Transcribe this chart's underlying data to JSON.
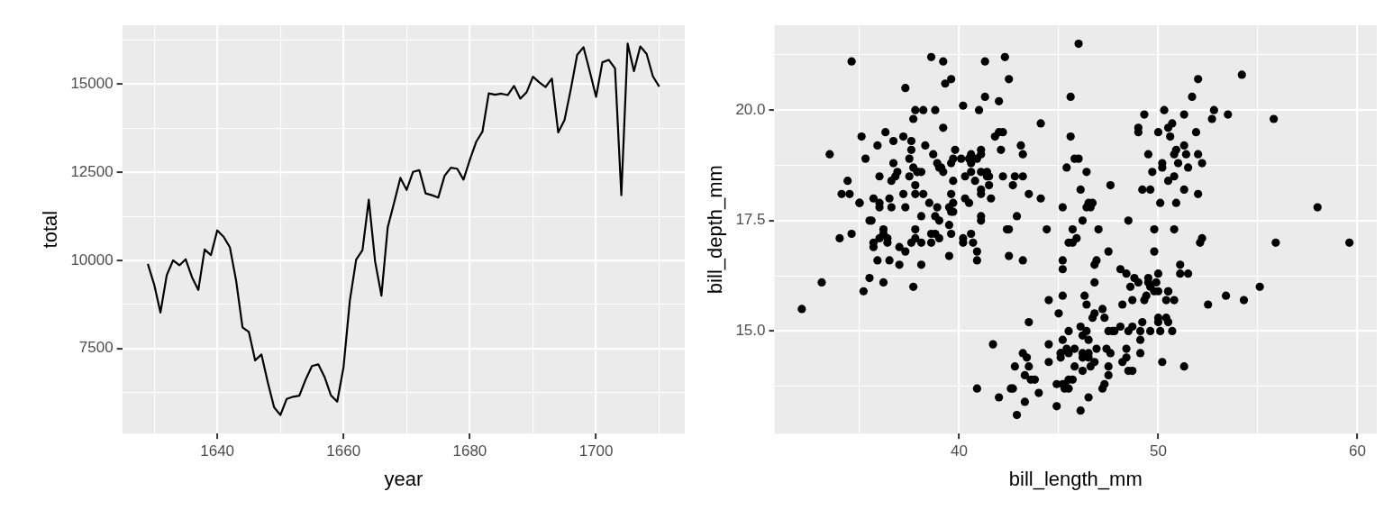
{
  "chart_data": [
    {
      "type": "line",
      "xlabel": "year",
      "ylabel": "total",
      "color": "#000000",
      "grid": true,
      "x": [
        1629,
        1630,
        1631,
        1632,
        1633,
        1634,
        1635,
        1636,
        1637,
        1638,
        1639,
        1640,
        1641,
        1642,
        1643,
        1644,
        1645,
        1646,
        1647,
        1648,
        1649,
        1650,
        1651,
        1652,
        1653,
        1654,
        1655,
        1656,
        1657,
        1658,
        1659,
        1660,
        1661,
        1662,
        1663,
        1664,
        1665,
        1666,
        1667,
        1668,
        1669,
        1670,
        1671,
        1672,
        1673,
        1674,
        1675,
        1676,
        1677,
        1678,
        1679,
        1680,
        1681,
        1682,
        1683,
        1684,
        1685,
        1686,
        1687,
        1688,
        1689,
        1690,
        1691,
        1692,
        1693,
        1694,
        1695,
        1696,
        1697,
        1698,
        1699,
        1700,
        1701,
        1702,
        1703,
        1704,
        1705,
        1706,
        1707,
        1708,
        1709,
        1710
      ],
      "values": [
        9900,
        9320,
        8520,
        9580,
        10000,
        9860,
        10030,
        9520,
        9160,
        10310,
        10150,
        10850,
        10670,
        10370,
        9410,
        8100,
        7970,
        7160,
        7330,
        6540,
        5830,
        5610,
        6070,
        6130,
        6160,
        6620,
        7000,
        7050,
        6690,
        6170,
        5990,
        6970,
        8860,
        10020,
        10290,
        11720,
        9970,
        9000,
        10940,
        11630,
        12340,
        12000,
        12510,
        12560,
        11900,
        11850,
        11780,
        12400,
        12630,
        12600,
        12290,
        12850,
        13360,
        13650,
        14740,
        14700,
        14730,
        14690,
        14950,
        14590,
        14770,
        15210,
        15050,
        14920,
        15160,
        13630,
        13980,
        14860,
        15830,
        16050,
        15360,
        14640,
        15620,
        15690,
        15450,
        11850,
        16150,
        15370,
        16070,
        15860,
        15220,
        14930
      ],
      "xlim": [
        1624.95,
        1714.05
      ],
      "ylim": [
        5085,
        16672
      ],
      "xticks": [
        {
          "value": 1630,
          "label": null
        },
        1640,
        {
          "value": 1650,
          "label": null
        },
        1660,
        {
          "value": 1670,
          "label": null
        },
        1680,
        {
          "value": 1690,
          "label": null
        },
        1700,
        {
          "value": 1710,
          "label": null
        }
      ],
      "yticks": [
        {
          "value": 6250,
          "label": null
        },
        7500,
        {
          "value": 8750,
          "label": null
        },
        10000,
        {
          "value": 11250,
          "label": null
        },
        12500,
        {
          "value": 13750,
          "label": null
        },
        15000,
        {
          "value": 16250,
          "label": null
        }
      ]
    },
    {
      "type": "scatter",
      "xlabel": "bill_length_mm",
      "ylabel": "bill_depth_mm",
      "color": "#000000",
      "grid": true,
      "marker": "circle",
      "x": [
        39.1,
        39.5,
        40.3,
        36.7,
        39.3,
        38.9,
        39.2,
        34.1,
        42,
        37.8,
        37.8,
        41.1,
        38.6,
        34.6,
        36.6,
        38.7,
        42.5,
        34.4,
        46,
        37.8,
        37.7,
        35.9,
        38.2,
        38.8,
        35.3,
        40.6,
        40.5,
        37.9,
        40.5,
        39.5,
        37.2,
        39.5,
        40.9,
        36.4,
        39.2,
        38.8,
        42.2,
        37.6,
        39.8,
        36.5,
        40.8,
        36,
        44.1,
        37,
        39.6,
        41.1,
        37.5,
        36,
        42.3,
        39.6,
        40.1,
        35,
        42,
        34.5,
        41.4,
        39,
        40.6,
        36.5,
        37.6,
        35.7,
        41.3,
        37.6,
        41.1,
        36.4,
        41.6,
        35.5,
        41.1,
        35.9,
        41.8,
        33.5,
        39.7,
        39.6,
        45.8,
        35.5,
        42.8,
        40.9,
        37.2,
        36.2,
        42.1,
        34.6,
        42.9,
        36.7,
        35.1,
        37.3,
        41.3,
        36.3,
        36.9,
        38.3,
        38.9,
        35.7,
        41.1,
        34,
        39.6,
        36.2,
        38.1,
        40.3,
        33.1,
        43.2,
        35,
        41,
        37.7,
        37.8,
        37.9,
        39.7,
        38.6,
        38.2,
        38.1,
        43.2,
        38.1,
        45.6,
        39.7,
        42.2,
        39.6,
        42.7,
        38.6,
        37.3,
        35.7,
        41.1,
        36.2,
        37.7,
        40.2,
        41.4,
        35.2,
        40.6,
        38.8,
        41.5,
        39,
        44.1,
        38.5,
        43.1,
        36.8,
        37.5,
        38.1,
        41.1,
        35.6,
        40.2,
        37,
        39.7,
        40.2,
        40.6,
        32.1,
        40.7,
        37.3,
        39,
        39.2,
        36.6,
        36,
        37.8,
        36,
        41.5,
        46.1,
        50,
        48.7,
        50,
        47.6,
        46.5,
        45.4,
        46.7,
        43.3,
        46.8,
        40.9,
        49,
        45.5,
        48.4,
        45.8,
        49.3,
        42,
        49.2,
        46.2,
        48.7,
        50.2,
        45.1,
        46.5,
        46.3,
        42.9,
        46.1,
        44.5,
        47.8,
        48.2,
        50,
        47.3,
        42.8,
        45.1,
        59.6,
        49.1,
        48.4,
        42.6,
        44.4,
        44,
        48.7,
        42.7,
        49.6,
        45.3,
        49.6,
        50.5,
        43.6,
        45.5,
        50.5,
        44.9,
        45.2,
        46.6,
        48.5,
        45.1,
        50.1,
        46.5,
        45,
        43.8,
        45.5,
        43.2,
        50.4,
        45.3,
        46.2,
        45.7,
        54.3,
        45.8,
        49.8,
        46.2,
        49.5,
        43.5,
        50.7,
        47.7,
        46.4,
        48.2,
        46.5,
        46.4,
        48.6,
        47.5,
        51.1,
        45.2,
        45.2,
        49.1,
        52.5,
        47.4,
        50,
        44.9,
        50.8,
        43.4,
        51.3,
        47.5,
        52.1,
        47.5,
        52.2,
        45.5,
        49.5,
        44.5,
        50.8,
        49.4,
        46.9,
        48.4,
        51.1,
        48.5,
        55.9,
        47.2,
        49.1,
        47.3,
        46.8,
        41.7,
        53.4,
        43.3,
        48.1,
        50.5,
        49.8,
        43.5,
        51.5,
        46.2,
        55.1,
        44.5,
        48.8,
        47.2,
        46.8,
        50.4,
        45.2,
        49.9,
        46.5,
        50,
        51.3,
        45.4,
        52.7,
        45.2,
        46.1,
        51.3,
        46,
        51.3,
        46.6,
        51.7,
        47,
        52,
        45.9,
        50.5,
        50.3,
        58,
        46.4,
        49.2,
        42.4,
        48.5,
        43.2,
        50.6,
        46.7,
        52,
        50.5,
        49.5,
        46.4,
        52.8,
        40.9,
        54.2,
        42.5,
        51,
        49.7,
        47.5,
        47.6,
        52,
        46.9,
        53.5,
        49,
        46.2,
        50.9,
        45.5,
        50.9,
        50.8,
        50.1,
        49,
        51.5,
        49.8,
        48.1,
        51.4,
        45.7,
        50.7,
        42.5,
        52.2,
        45.2,
        49.3,
        50.2,
        45.6,
        51.9,
        46.8,
        45.7,
        55.8,
        43.5,
        49.6,
        50.8,
        50.2
      ],
      "values": [
        18.7,
        17.4,
        18,
        19.3,
        20.6,
        17.8,
        19.6,
        18.1,
        20.2,
        17.1,
        17.3,
        17.6,
        21.2,
        21.1,
        17.8,
        19,
        20.7,
        18.4,
        21.5,
        18.3,
        18.7,
        19.2,
        18.1,
        17.2,
        18.9,
        18.6,
        17.9,
        18.6,
        18.9,
        16.7,
        18.1,
        17.8,
        18.9,
        17,
        21.1,
        20,
        18.5,
        19.3,
        19.1,
        18,
        18.4,
        18.5,
        19.7,
        16.9,
        18.8,
        19,
        18.9,
        17.9,
        21.2,
        17.7,
        18.9,
        17.9,
        19.5,
        18.1,
        18.6,
        17.5,
        18.8,
        16.6,
        19.1,
        16.9,
        21.1,
        17,
        18.2,
        17.1,
        18,
        16.2,
        19.1,
        16.6,
        19.4,
        19,
        18.4,
        17.2,
        18.9,
        17.5,
        18.5,
        16.8,
        19.4,
        16.1,
        19.1,
        17.2,
        17.6,
        18.8,
        19.4,
        17.8,
        20.3,
        19.5,
        18.6,
        19.2,
        18.8,
        18,
        18.1,
        17.1,
        18.1,
        17.3,
        18.6,
        18.5,
        16.1,
        18.5,
        17.9,
        20,
        16,
        20,
        18.6,
        18.9,
        17.2,
        20,
        17,
        19,
        16.5,
        20.3,
        17.7,
        19.5,
        20.7,
        18.3,
        17,
        20.5,
        17,
        18.6,
        17.2,
        19.8,
        17,
        18.5,
        15.9,
        19,
        17.6,
        18.3,
        17.1,
        18,
        17.9,
        19.2,
        18.5,
        18.5,
        17.6,
        17.5,
        17.5,
        20.1,
        16.5,
        17.9,
        17.1,
        17.2,
        15.5,
        17,
        16.8,
        18.7,
        18.6,
        18.4,
        17.8,
        18.1,
        17.1,
        18.5,
        13.2,
        16.3,
        14.1,
        15.2,
        14.5,
        13.5,
        14.6,
        15.3,
        13.4,
        15.4,
        13.7,
        16.1,
        13.7,
        14.6,
        14.6,
        15.7,
        13.5,
        15.2,
        14.5,
        15.1,
        14.3,
        14.5,
        14.5,
        15.8,
        13.1,
        15.1,
        14.3,
        15,
        14.3,
        15.3,
        15.3,
        14.2,
        14.5,
        17,
        14.8,
        16.3,
        13.7,
        17.3,
        13.6,
        15.7,
        13.7,
        16,
        13.7,
        15,
        15.9,
        13.9,
        13.9,
        15.9,
        13.3,
        15.8,
        14.2,
        14.1,
        14.4,
        15,
        14.4,
        15.4,
        13.9,
        15,
        14.5,
        15.3,
        13.8,
        14.9,
        13.9,
        15.7,
        14.2,
        16.8,
        14.4,
        16.2,
        14.2,
        15,
        15,
        15.6,
        15.6,
        14.8,
        15,
        16,
        14.2,
        16.3,
        13.8,
        16.4,
        14.5,
        15.6,
        14.6,
        15.9,
        13.8,
        17.3,
        14.4,
        14.2,
        14,
        17,
        15,
        17.1,
        14.5,
        16.1,
        14.7,
        15.7,
        15.8,
        14.6,
        14.4,
        16.5,
        15,
        17,
        15.5,
        15,
        13.8,
        16.1,
        14.7,
        15.8,
        14,
        15.1,
        15.2,
        15.9,
        15.2,
        16.3,
        14.1,
        16,
        15.7,
        16.2,
        13.7,
        14.3,
        15.7,
        14.8,
        16.1,
        17.9,
        19.5,
        19.2,
        18.7,
        19.8,
        17.8,
        18.2,
        18.2,
        18.9,
        19.9,
        17.8,
        20.3,
        17.3,
        18.1,
        17.1,
        19.6,
        20,
        17.8,
        18.6,
        18.2,
        17.3,
        17.5,
        16.6,
        19.4,
        17.9,
        19,
        18.4,
        19,
        17.8,
        20,
        16.6,
        20.8,
        16.7,
        18.8,
        18.6,
        16.8,
        18.3,
        20.7,
        16.6,
        19.9,
        19.5,
        17.5,
        19.1,
        17,
        17.9,
        18.5,
        17.9,
        19.6,
        18.7,
        17.3,
        16.4,
        19,
        17.3,
        19.7,
        17.3,
        18.8,
        16.6,
        19.9,
        18.8,
        19.4,
        19.5,
        16.5,
        17,
        19.8,
        18.1,
        18.2,
        19,
        18.7
      ],
      "xlim": [
        30.725,
        60.975
      ],
      "ylim": [
        12.68,
        21.92
      ],
      "xticks": [
        {
          "value": 35,
          "label": null
        },
        40,
        {
          "value": 45,
          "label": null
        },
        50,
        {
          "value": 55,
          "label": null
        },
        60
      ],
      "yticks": [
        {
          "value": 13.75,
          "label": null
        },
        {
          "value": 15,
          "label": "15.0"
        },
        {
          "value": 16.25,
          "label": null
        },
        17.5,
        {
          "value": 18.75,
          "label": null
        },
        {
          "value": 20,
          "label": "20.0"
        },
        {
          "value": 21.25,
          "label": null
        }
      ]
    }
  ]
}
